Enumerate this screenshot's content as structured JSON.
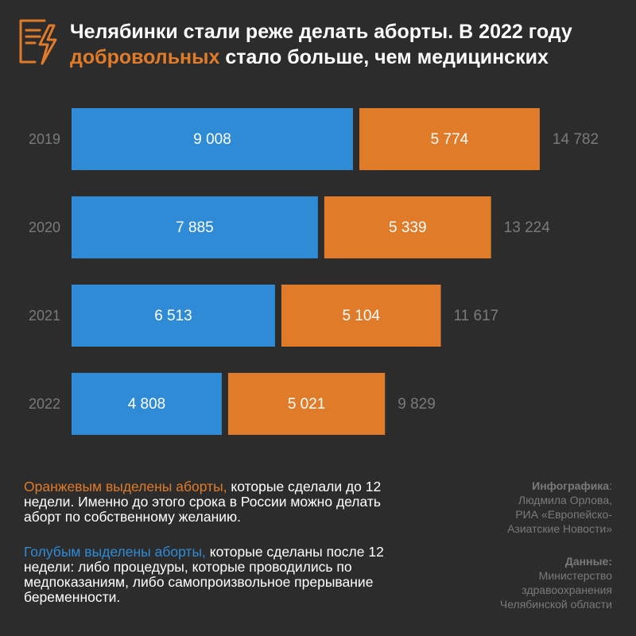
{
  "header": {
    "title_part1": "Челябинки стали реже делать аборты. В 2022 году",
    "title_accent": "добровольных",
    "title_part2": "стало больше, чем медицинских"
  },
  "colors": {
    "background": "#2c2c2c",
    "blue": "#2f8bd6",
    "orange": "#e07b2a",
    "muted": "#7a7a7a"
  },
  "chart_data": {
    "type": "bar",
    "orientation": "horizontal",
    "stacked": true,
    "title": "Челябинки стали реже делать аборты. В 2022 году добровольных стало больше, чем медицинских",
    "categories": [
      "2019",
      "2020",
      "2021",
      "2022"
    ],
    "series": [
      {
        "name": "Голубым выделены аборты",
        "color": "#2f8bd6",
        "values": [
          9008,
          7885,
          6513,
          4808
        ],
        "labels": [
          "9 008",
          "7 885",
          "6 513",
          "4 808"
        ]
      },
      {
        "name": "Оранжевым выделены аборты",
        "color": "#e07b2a",
        "values": [
          5774,
          5339,
          5104,
          5021
        ],
        "labels": [
          "5 774",
          "5 339",
          "5 104",
          "5 021"
        ]
      }
    ],
    "totals": [
      14782,
      13224,
      11617,
      9829
    ],
    "total_labels": [
      "14 782",
      "13 224",
      "11 617",
      "9 829"
    ],
    "xlabel": "",
    "ylabel": "",
    "grid": false,
    "legend": "none"
  },
  "notes": {
    "orange_lead": "Оранжевым выделены аборты,",
    "orange_rest": " которые сделали до 12 недели. Именно до этого срока в России можно делать аборт по собственному желанию.",
    "blue_lead": "Голубым выделены аборты,",
    "blue_rest": " которые сделаны после 12 недели: либо процедуры, которые проводились по медпоказаниям, либо самопроизвольное прерывание беременности."
  },
  "credits": {
    "infographic_label": "Инфографика",
    "infographic_colon": ":",
    "infographic_lines": [
      "Людмила Орлова,",
      "РИА «Европейско-",
      "Азиатские Новости»"
    ],
    "source_label": "Данные:",
    "source_lines": [
      "Министерство",
      "здравоохранения",
      "Челябинской области"
    ]
  },
  "icons": {
    "logo": "document-lightning-icon"
  }
}
